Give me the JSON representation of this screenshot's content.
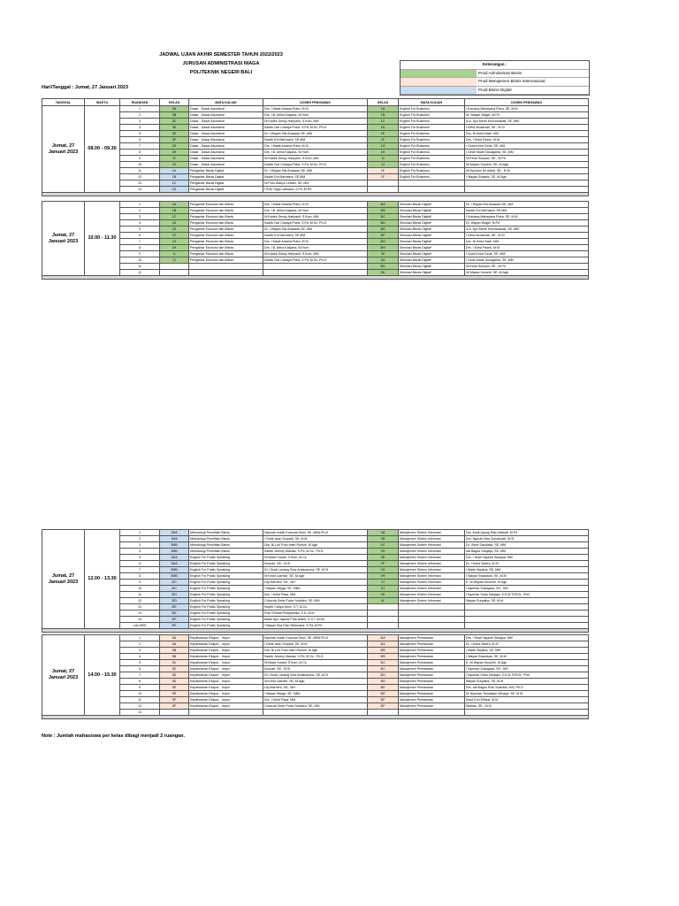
{
  "header": {
    "title": "JADWAL UJIAN AKHIR SEMESTER  TAHUN 2022/2023",
    "department": "JURUSAN ADMINISTRASI NIAGA",
    "institution": "POLITEKNIK NEGERI BALI",
    "date": "Hari/Tanggal : Jumat, 27 Januari 2023"
  },
  "legend": {
    "title": "Keterangan :",
    "items": [
      {
        "label": "Prodi Administrasi Bisnis",
        "color": "#a9d18e"
      },
      {
        "label": "Prodi Manajemen Bisnis Internasional",
        "color": "#fce4d6"
      },
      {
        "label": "Prodi Bisnis Digital",
        "color": "#c9dcf0"
      }
    ]
  },
  "columns": [
    "TANGGAL",
    "WAKTU",
    "RUANGAN",
    "KELAS",
    "MATA KULIAH",
    "DOSEN PENGAWAS",
    "KELAS",
    "MATA KULIAH",
    "DOSEN PENGAWAS"
  ],
  "blocks": [
    {
      "date": "Jumat, 27 Januari 2023",
      "time": "08.00 - 09.30",
      "top": 119,
      "rows": [
        [
          "1",
          "3A",
          "Dasar - Dasar Akuntansi",
          "Drs. I Made Ardana Putra, M.Si",
          "1A",
          "English For Business",
          "I Komang Mahayana Putra, SE.,M.M",
          "#a9d18e",
          "#a9d18e"
        ],
        [
          "2",
          "3B",
          "Dasar - Dasar Akuntansi",
          "Drs. I.B. Artha Kalyana, M.Hum",
          "1B",
          "English For Business",
          "W. Wayan Wagel, M.Pd",
          "#a9d18e",
          "#a9d18e"
        ],
        [
          "3",
          "3C",
          "Dasar - Dasar Akuntansi",
          "Ni Kadek Dessy Hariyanti, S.Kom.,MM",
          "1C",
          "English For Business",
          "A.A. Ayu Mirah Kencanawati, SE.,MM",
          "#a9d18e",
          "#a9d18e"
        ],
        [
          "4",
          "3D",
          "Dasar - Dasar Akuntansi",
          "Kadek Dwi Cahaya Putra, S.Pd.,M.Sc.,Ph.D",
          "1D",
          "English For Business",
          "I Ketut Mudarata, SE., M.Si",
          "#a9d18e",
          "#a9d18e"
        ],
        [
          "5",
          "3E",
          "Dasar - Dasar Akuntansi",
          "Dr. I Wayan Siki Arsawan,SE.,MM",
          "1E",
          "English For Business",
          "Drs. Ni Ketut Narti, MM",
          "#a9d18e",
          "#a9d18e"
        ],
        [
          "6",
          "3F",
          "Dasar - Dasar Akuntansi",
          "Kadek Eni Marhaeni, SE.MM",
          "1F",
          "English For Business",
          "Drs. I Ketut Pasek, M.M",
          "#a9d18e",
          "#a9d18e"
        ],
        [
          "7",
          "3G",
          "Dasar - Dasar Akuntansi",
          "Drs. I Made Ardana Putra, M.Si",
          "1G",
          "English For Business",
          "I Gusti Ketut Gede, SE.,MM",
          "#a9d18e",
          "#a9d18e"
        ],
        [
          "8",
          "3H",
          "Dasar - Dasar Akuntansi",
          "Drs. I.B. Artha Kalyana, M.Hum",
          "1H",
          "English For Business",
          "I Gede Made Sukagama, SE.,MM",
          "#a9d18e",
          "#a9d18e"
        ],
        [
          "9",
          "3I",
          "Dasar - Dasar Akuntansi",
          "Ni Kadek Dessy Hariyanti, S.Kom.,MM",
          "1I",
          "English For Business",
          "Ni Ketut Sussani, SE., M.Pd",
          "#a9d18e",
          "#a9d18e"
        ],
        [
          "10",
          "3J",
          "Dasar - Dasar Akuntansi",
          "Kadek Dwi Cahaya Putra, S.Pd.,M.Sc.,Ph.D",
          "1J",
          "English For Business",
          "Ni Wayan Sumetri, SE.,M.Agb",
          "#a9d18e",
          "#a9d18e"
        ],
        [
          "11",
          "1A",
          "Pengantar Bisnis Digital",
          "Dr. I Wayan Siki Arsawan,SE.,MM",
          "1F",
          "English For Business",
          "Ni Nyoman Sri Astuti, SE., M.Si",
          "#c9dcf0",
          "#fce4d6"
        ],
        [
          "12",
          "1B",
          "Pengantar Bisnis Digital",
          "Kadek Eni Marhaeni, SE.MM",
          "1F",
          "English For Business",
          "I Wayan Sukarta, SE.,M.Agb",
          "#c9dcf0",
          "#fce4d6"
        ],
        [
          "13",
          "1C",
          "Pengantar Bisnis Digital",
          "Ni Putu Wahyu Lestari, SE.,MM",
          null,
          null,
          null,
          "#c9dcf0",
          null
        ],
        [
          "14",
          "1D",
          "Pengantar Bisnis Digital",
          "I Putu Yoga Laksana, S.Pd.,M.Pd",
          null,
          null,
          null,
          "#c9dcf0",
          null
        ]
      ]
    },
    {
      "date": "Jumat, 27 Januari 2023",
      "time": "10.00 - 11.30",
      "top": 227,
      "rows": [
        [
          "1",
          "1A",
          "Pengantar Ekonomi dan Bisnis",
          "Drs. I Made Ardana Putra, M.Si",
          "3IA",
          "Simulasi Bisnis Digital*",
          "Dr. I Wayan Edi Arsawan,SE.,MM",
          "#a9d18e",
          "#a9d18e"
        ],
        [
          "2",
          "1B",
          "Pengantar Ekonomi dan Bisnis",
          "Drs. I.B. Artha Kalyana, M.Hum",
          "3IB",
          "Simulasi Bisnis Digital*",
          "Kadek Eni Marhaeni, SE.MM",
          "#a9d18e",
          "#a9d18e"
        ],
        [
          "3",
          "1C",
          "Pengantar Ekonomi dan Bisnis",
          "Ni Kadek Dessy Hariyanti, S.Kom.,MM",
          "3IC",
          "Simulasi Bisnis Digital*",
          "I Komang Mahayana Putra, SE.,M.M",
          "#a9d18e",
          "#a9d18e"
        ],
        [
          "4",
          "1D",
          "Pengantar Ekonomi dan Bisnis",
          "Kadek Dwi Cahaya Putra, S.Pd.,M.Sc.,Ph.D",
          "3ID",
          "Simulasi Bisnis Digital*",
          "Dr. Wayan Wagel, M.Pd",
          "#a9d18e",
          "#a9d18e"
        ],
        [
          "5",
          "1E",
          "Pengantar Ekonomi dan Bisnis",
          "Dr. I Wayan Siki Arsawan,SE.,MM",
          "3IE",
          "Simulasi Bisnis Digital*",
          "A.A. Ayu Mirah Kencanawati, SE.,MM",
          "#a9d18e",
          "#a9d18e"
        ],
        [
          "6",
          "1F",
          "Pengantar Ekonomi dan Bisnis",
          "Kadek Eni Marhaeni, SE.MM",
          "3IF",
          "Simulasi Bisnis Digital*",
          "I Ketut Mudarata, SE., M.Si",
          "#a9d18e",
          "#a9d18e"
        ],
        [
          "7",
          "1G",
          "Pengantar Ekonomi dan Bisnis",
          "Drs. I Made Ardana Putra, M.Si",
          "3IG",
          "Simulasi Bisnis Digital*",
          "Drs. Ni Ketut Narti, MM",
          "#a9d18e",
          "#a9d18e"
        ],
        [
          "8",
          "1H",
          "Pengantar Ekonomi dan Bisnis",
          "Drs. I.B. Artha Kalyana, M.Hum",
          "3IH",
          "Simulasi Bisnis Digital*",
          "Drs. I Ketut Pasek, M.M",
          "#a9d18e",
          "#a9d18e"
        ],
        [
          "9",
          "1I",
          "Pengantar Ekonomi dan Bisnis",
          "Ni Kadek Dessy Hariyanti, S.Kom.,MM",
          "3II",
          "Simulasi Bisnis Digital*",
          "I Gusti Ketut Gede, SE.,MM",
          "#a9d18e",
          "#a9d18e"
        ],
        [
          "10",
          "1J",
          "Pengantar Ekonomi dan Bisnis",
          "Kadek Dwi Cahaya Putra, S.Pd.,M.Sc.,Ph.D",
          "3IJ",
          "Simulasi Bisnis Digital*",
          "I Gede Made Sukagama, SE.,MM",
          "#a9d18e",
          "#a9d18e"
        ],
        [
          "11",
          null,
          null,
          null,
          "3IK",
          "Simulasi Bisnis Digital*",
          "Ni Ketut Sussani, SE., M.Pd",
          null,
          "#a9d18e"
        ],
        [
          "12",
          null,
          null,
          null,
          "3IL",
          "Simulasi Bisnis Digital*",
          "Ni Wayan Sumetri, SE.,M.Agb",
          null,
          "#a9d18e"
        ]
      ]
    },
    {
      "date": "Jumat, 27 Januari 2023",
      "time": "12.00 - 13.30",
      "top": 598,
      "rows": [
        [
          "1",
          "1MA",
          "Metodologi Penelitian Bisnis",
          "Nyoman Indah Kusuma Dewi, SE.,MBA,Ph.D",
          "VA",
          "Manajemen Sistem Informasi",
          "Drs. Anak Agung Ratu Mawati, M.Pd",
          "#c9dcf0",
          "#a9d18e"
        ],
        [
          "2",
          "1MA",
          "Metodologi Penelitian Bisnis",
          "I Gede Iwan Suryadi, SE.,M.M",
          "VB",
          "Manajemen Sistem Informasi",
          "Drs. Ngurah Mas Sumarwati, M.Si",
          "#c9dcf0",
          "#a9d18e"
        ],
        [
          "3",
          "3MB",
          "Metodologi Penelitian Bisnis",
          "Dra. Ni Luh Putu Inten Rumini, M.Agb",
          "VC",
          "Manajemen Sistem Informasi",
          "Dr. Gede Sandiasa, SE.,MM",
          "#c9dcf0",
          "#a9d18e"
        ],
        [
          "4",
          "3MB",
          "Metodologi Penelitian Bisnis",
          "Kadek Jeremy Manika, S.Pd.,M.Sc., Ph.D",
          "VD",
          "Manajemen Sistem Informasi",
          "Ida Bagus Sanjaya, SE.,MM",
          "#c9dcf0",
          "#a9d18e"
        ],
        [
          "5",
          "1MA",
          "English For Public Speaking",
          "Ni Made Kariati, S.Kom.,M.Cs",
          "VE",
          "Manajemen Sistem Informasi",
          "Drs. I Gusti Ngurah Sanjaya, MM",
          "#c9dcf0",
          "#a9d18e"
        ],
        [
          "6",
          "1MA",
          "English For Public Speaking",
          "Kusuari, SE., M.Si",
          "VF",
          "Manajemen Sistem Informasi",
          "Dr. I Ketut Santra, M.Si",
          "#c9dcf0",
          "#a9d18e"
        ],
        [
          "7",
          "3MB",
          "English For Public Speaking",
          "Dr.I Gusti Lanang Suta Artakusuma, SE.,M.Si",
          "VG",
          "Manajemen Sistem Informasi",
          "I Made Sarjana, SE.,MM",
          "#c9dcf0",
          "#a9d18e"
        ],
        [
          "8",
          "3MB",
          "English For Public Speaking",
          "Ni Ketut Lasmini, SE.,M.Agb",
          "VH",
          "Manajemen Sistem Informasi",
          "I Wayan Swarskan, SE.,M.M",
          "#c9dcf0",
          "#a9d18e"
        ],
        [
          "9",
          "3IC",
          "English For Public Speaking",
          "Lily Marheni, SH., MH",
          "VI",
          "Manajemen Sistem Informasi",
          "K. Ni Wayan Kusuhiri, M.Agb",
          "#c9dcf0",
          "#a9d18e"
        ],
        [
          "10",
          "3IC",
          "English For Public Speaking",
          "I Wayan Wiyga, SE, MBA",
          "VJ",
          "Manajemen Sistem Informasi",
          "I Nyoman Sukayasa, SH., MH",
          "#c9dcf0",
          "#a9d18e"
        ],
        [
          "11",
          "3ID",
          "English For Public Speaking",
          "Drs. I Ketut Pasa, MM",
          "VK",
          "Manajemen Sistem Informasi",
          "I Nyoman Suka Sanjaya, S.E,M.TESOL, PhD",
          "#c9dcf0",
          "#a9d18e"
        ],
        [
          "12",
          "3ID",
          "English For Public Speaking",
          "Cokorda Gede Putra Yudistira, SE.,MM",
          "VL",
          "Manajemen Sistem Informasi",
          "Wayan Suryatha, SE.,M.M",
          "#c9dcf0",
          "#a9d18e"
        ],
        [
          "13",
          "3IE",
          "English For Public Speaking",
          "Kadek Cahya Dewi, S.T.,M.Cs",
          null,
          null,
          null,
          "#c9dcf0",
          null
        ],
        [
          "14",
          "3IE",
          "English For Public Speaking",
          "Putu Sriharti Prasyantika, S.E.,M.M",
          null,
          null,
          null,
          "#c9dcf0",
          null
        ],
        [
          "15",
          "3IF",
          "English For Public Speaking",
          "Made Ayu Jayanti Prita Utami, S.S.T.,M.Ds",
          null,
          null,
          null,
          "#c9dcf0",
          null
        ],
        [
          "Lab MKS",
          "3IF",
          "English For Public Speaking",
          "I Wayan Eka Dian Rahmana, S.Pd.,M.Pd",
          null,
          null,
          null,
          "#c9dcf0",
          null
        ]
      ]
    },
    {
      "date": "Jumat, 27 Januari 2023",
      "time": "14.00 - 15.30",
      "top": 717,
      "rows": [
        [
          "1",
          "5A",
          "Kepabeanan Ekspor - Impor",
          "Nyoman Indah Kusuma Dewi, SE.,MBA,Ph.D",
          "3IA",
          "Manajemen Pemasaran",
          "Drs. I Gusti Ngurah Sanjaya, MM",
          "#fce4d6",
          "#fce4d6"
        ],
        [
          "2",
          "5A",
          "Kepabeanan Ekspor - Impor",
          "I Gede Iwan Suryadi, SE.,M.M",
          "3IA",
          "Manajemen Pemasaran",
          "Dr. I Ketut Santra, M.Si",
          "#fce4d6",
          "#fce4d6"
        ],
        [
          "3",
          "5B",
          "Kepabeanan Ekspor - Impor",
          "Dra. Ni Luh Putu Inten Rumini, M.Agb",
          "3IB",
          "Manajemen Pemasaran",
          "I Made Sarjana, SE.,MM",
          "#fce4d6",
          "#fce4d6"
        ],
        [
          "4",
          "5B",
          "Kepabeanan Ekspor - Impor",
          "Kadek Jeremy Manika, S.Pd.,M.Sc., Ph.D",
          "3IB",
          "Manajemen Pemasaran",
          "I Wayan Swarskan, SE.,M.M",
          "#fce4d6",
          "#fce4d6"
        ],
        [
          "5",
          "5C",
          "Kepabeanan Ekspor - Impor",
          "Ni Made Kariati, S.Kom.,M.Cs",
          "3IC",
          "Manajemen Pemasaran",
          "K. Ni Wayan Kusuhiri, M.Agb",
          "#fce4d6",
          "#fce4d6"
        ],
        [
          "6",
          "5C",
          "Kepabeanan Ekspor - Impor",
          "Kusuari, SE., M.Si",
          "3IC",
          "Manajemen Pemasaran",
          "I Nyoman Sukayasa, SH., MH",
          "#fce4d6",
          "#fce4d6"
        ],
        [
          "7",
          "5D",
          "Kepabeanan Ekspor - Impor",
          "Dr.I Gusti Lanang Suta Artakusuma, SE.,M.Si",
          "3ID",
          "Manajemen Pemasaran",
          "I Nyoman Suka Sanjaya, S.E,M.TESOL, PhD",
          "#fce4d6",
          "#fce4d6"
        ],
        [
          "8",
          "5D",
          "Kepabeanan Ekspor - Impor",
          "Ni Ketut Lasmini, SE.,M.Agb",
          "3ID",
          "Manajemen Pemasaran",
          "Wayan Suryatha, SE.,M.M",
          "#fce4d6",
          "#fce4d6"
        ],
        [
          "9",
          "5E",
          "Kepabeanan Ekspor - Impor",
          "Lily Marheni, SH., MH",
          "3IE",
          "Manajemen Pemasaran",
          "Drs. Ida Bagus Putu Suamba, MSi, Ph.D",
          "#fce4d6",
          "#fce4d6"
        ],
        [
          "10",
          "5E",
          "Kepabeanan Ekspor - Impor",
          "I Wayan Wiyga, SE, MBA",
          "3IE",
          "Manajemen Pemasaran",
          "Dr Nyoman Temaliyan Winaya, SE, M.M",
          "#fce4d6",
          "#fce4d6"
        ],
        [
          "11",
          "5F",
          "Kepabeanan Ekspor - Impor",
          "Drs. I Ketut Pasa, MM",
          "3IF",
          "Manajemen Pemasaran",
          "Ketut Ervi Erfarai, M.M",
          "#fce4d6",
          "#fce4d6"
        ],
        [
          "12",
          "5F",
          "Kepabeanan Ekspor - Impor",
          "Cokorda Gede Putra Yudistira, SE.,MM",
          "3IF",
          "Manajemen Pemasaran",
          "Martias, SE., M.Si",
          "#fce4d6",
          "#fce4d6"
        ],
        [
          "13",
          null,
          null,
          null,
          null,
          null,
          null,
          null,
          null
        ]
      ]
    }
  ],
  "note": "Note :  Jumlah mahasiswa per kelas dibagi menjadi 2 ruangan."
}
